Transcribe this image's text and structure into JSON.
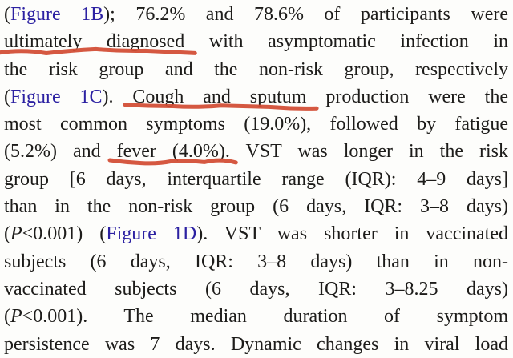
{
  "page": {
    "kind": "journal-article-text-excerpt",
    "background_color": "#fdfdfb",
    "text_color": "#1d1c1a"
  },
  "colors": {
    "figure_link": "#2c21a2",
    "red_annotation": "#d24b33"
  },
  "paragraph": {
    "lines": [
      {
        "segments": [
          {
            "text": "("
          },
          {
            "text": "Figure 1B",
            "style": "link"
          },
          {
            "text": "); 76.2% and 78.6% of participants were"
          }
        ]
      },
      {
        "segments": [
          {
            "text": "ultimately diagnosed",
            "marked": true
          },
          {
            "text": " with asymptomatic infection in"
          }
        ]
      },
      {
        "segments": [
          {
            "text": "the risk group and the non-risk group, respectively"
          }
        ]
      },
      {
        "segments": [
          {
            "text": "("
          },
          {
            "text": "Figure 1C",
            "style": "link"
          },
          {
            "text": "). "
          },
          {
            "text": "Cough and sputum",
            "marked": true
          },
          {
            "text": " production were the"
          }
        ]
      },
      {
        "segments": [
          {
            "text": "most common symptoms (19.0%), followed by fatigue"
          }
        ]
      },
      {
        "segments": [
          {
            "text": "(5.2%) and "
          },
          {
            "text": "fever (4.0%)",
            "marked": true
          },
          {
            "text": ". VST was longer in the risk"
          }
        ]
      },
      {
        "segments": [
          {
            "text": "group [6 days, interquartile range (IQR): 4–9 days]"
          }
        ]
      },
      {
        "segments": [
          {
            "text": "than in the non-risk group (6 days, IQR: 3–8 days)"
          }
        ]
      },
      {
        "segments": [
          {
            "text": "("
          },
          {
            "text": "P",
            "style": "italic"
          },
          {
            "text": "<0.001) ("
          },
          {
            "text": "Figure 1D",
            "style": "link"
          },
          {
            "text": "). VST was shorter in vaccinated"
          }
        ]
      },
      {
        "segments": [
          {
            "text": "subjects (6 days, IQR: 3–8 days) than in non-"
          }
        ]
      },
      {
        "segments": [
          {
            "text": "vaccinated subjects (6 days, IQR: 3–8.25 days)"
          }
        ]
      },
      {
        "segments": [
          {
            "text": "("
          },
          {
            "text": "P",
            "style": "italic"
          },
          {
            "text": "<0.001). The median duration of symptom"
          }
        ]
      },
      {
        "segments": [
          {
            "text": "persistence was 7 days. Dynamic changes in viral load"
          }
        ]
      }
    ]
  },
  "annotations": {
    "type": "hand-drawn-red-underline",
    "phrases": [
      "ultimately diagnosed",
      "Cough and sputum",
      "fever (4.0%)"
    ]
  }
}
